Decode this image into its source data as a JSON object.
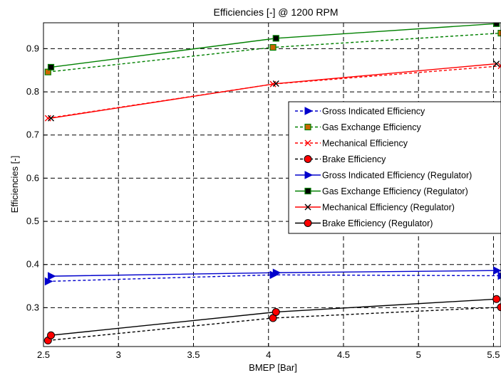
{
  "chart_data": {
    "type": "line",
    "title": "Efficiencies [-] @ 1200 RPM",
    "xlabel": "BMEP [Bar]",
    "ylabel": "Efficiencies [-]",
    "xlim": [
      2.5,
      5.55
    ],
    "ylim": [
      0.21,
      0.96
    ],
    "xticks": [
      2.5,
      3,
      3.5,
      4,
      4.5,
      5,
      5.5
    ],
    "xtick_labels": [
      "2.5",
      "3",
      "3.5",
      "4",
      "4.5",
      "5",
      "5.5"
    ],
    "yticks": [
      0.3,
      0.4,
      0.5,
      0.6,
      0.7,
      0.8,
      0.9
    ],
    "ytick_labels": [
      "0.3",
      "0.4",
      "0.5",
      "0.6",
      "0.7",
      "0.8",
      "0.9"
    ],
    "grid": true,
    "legend_position": "right",
    "series": [
      {
        "name": "Gross Indicated Efficiency",
        "color": "#0000cc",
        "dash": true,
        "marker": "triangle-right",
        "x": [
          2.53,
          4.03,
          5.55
        ],
        "y": [
          0.361,
          0.376,
          0.374
        ]
      },
      {
        "name": "Gas Exchange Efficiency",
        "color": "#008000",
        "dash": true,
        "marker": "square-orange",
        "x": [
          2.53,
          4.03,
          5.55
        ],
        "y": [
          0.846,
          0.903,
          0.936
        ]
      },
      {
        "name": "Mechanical Efficiency",
        "color": "#ff0000",
        "dash": true,
        "marker": "x-red",
        "x": [
          2.53,
          4.03,
          5.55
        ],
        "y": [
          0.739,
          0.818,
          0.86
        ]
      },
      {
        "name": "Brake Efficiency",
        "color": "#000000",
        "dash": true,
        "marker": "circle-red",
        "x": [
          2.53,
          4.03,
          5.55
        ],
        "y": [
          0.224,
          0.276,
          0.301
        ]
      },
      {
        "name": "Gross Indicated Efficiency (Regulator)",
        "color": "#0000cc",
        "dash": false,
        "marker": "triangle-right",
        "x": [
          2.55,
          4.05,
          5.52
        ],
        "y": [
          0.373,
          0.381,
          0.386
        ]
      },
      {
        "name": "Gas Exchange Efficiency (Regulator)",
        "color": "#008000",
        "dash": false,
        "marker": "square-black",
        "x": [
          2.55,
          4.05,
          5.52
        ],
        "y": [
          0.857,
          0.924,
          0.958
        ]
      },
      {
        "name": "Mechanical Efficiency (Regulator)",
        "color": "#ff0000",
        "dash": false,
        "marker": "x-black",
        "x": [
          2.55,
          4.05,
          5.52
        ],
        "y": [
          0.739,
          0.819,
          0.865
        ]
      },
      {
        "name": "Brake Efficiency (Regulator)",
        "color": "#000000",
        "dash": false,
        "marker": "circle-red",
        "x": [
          2.55,
          4.05,
          5.52
        ],
        "y": [
          0.236,
          0.29,
          0.32
        ]
      }
    ]
  }
}
